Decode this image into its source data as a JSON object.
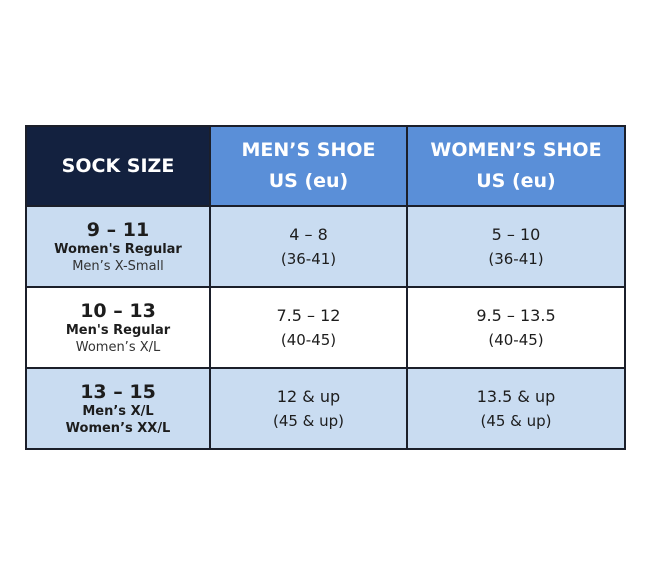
{
  "header": {
    "col0": "SOCK SIZE",
    "col1_line1": "MEN’S SHOE",
    "col1_line2": "US (eu)",
    "col2_line1": "WOMEN’S SHOE",
    "col2_line2": "US (eu)"
  },
  "colors": {
    "sock_header": "#13213f",
    "shoe_header": "#5a8fd8",
    "shaded_row": "#c9dcf1"
  },
  "rows": [
    {
      "sock": "9 – 11",
      "label1": "Women's Regular",
      "label2": "Men’s X-Small",
      "mens_us": "4 – 8",
      "mens_eu": "(36-41)",
      "womens_us": "5 – 10",
      "womens_eu": "(36-41)"
    },
    {
      "sock": "10 – 13",
      "label1": "Men's Regular",
      "label2": "Women’s X/L",
      "mens_us": "7.5 – 12",
      "mens_eu": "(40-45)",
      "womens_us": "9.5 – 13.5",
      "womens_eu": "(40-45)"
    },
    {
      "sock": "13 – 15",
      "label1": "Men’s X/L",
      "label2": "Women’s XX/L",
      "mens_us": "12 & up",
      "mens_eu": "(45 & up)",
      "womens_us": "13.5 & up",
      "womens_eu": "(45 & up)"
    }
  ]
}
